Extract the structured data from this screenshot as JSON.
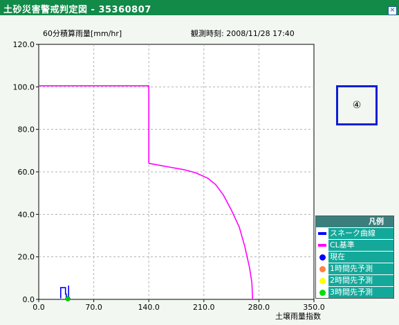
{
  "window": {
    "title": "土砂災害警戒判定図 - 35360807",
    "close_label": "×"
  },
  "chart_data": {
    "type": "line",
    "ylabel": "60分積算雨量[mm/hr]",
    "xlabel": "土壌雨量指数",
    "observation": "観測時刻: 2008/11/28 17:40",
    "xlim": [
      0,
      350
    ],
    "ylim": [
      0,
      120
    ],
    "x_ticks": [
      "0.0",
      "70.0",
      "140.0",
      "210.0",
      "280.0",
      "350.0"
    ],
    "y_ticks": [
      "0.0",
      "20.0",
      "40.0",
      "60.0",
      "80.0",
      "100.0",
      "120.0"
    ],
    "grid": true,
    "series": [
      {
        "name": "CL基準",
        "color": "#ff00ff",
        "points": [
          [
            0,
            100.5
          ],
          [
            140,
            100.5
          ],
          [
            140,
            64
          ],
          [
            155,
            63
          ],
          [
            170,
            62
          ],
          [
            185,
            61
          ],
          [
            200,
            59.5
          ],
          [
            215,
            57
          ],
          [
            225,
            54
          ],
          [
            235,
            49
          ],
          [
            245,
            42
          ],
          [
            255,
            34
          ],
          [
            262,
            25
          ],
          [
            268,
            15
          ],
          [
            271,
            8
          ],
          [
            272,
            0
          ]
        ]
      },
      {
        "name": "スネーク曲線",
        "color": "#0000ff",
        "points": [
          [
            28,
            0.5
          ],
          [
            28,
            5.5
          ],
          [
            34,
            5.5
          ],
          [
            34,
            2.5
          ],
          [
            35,
            2.5
          ],
          [
            35,
            0.5
          ],
          [
            38,
            0.5
          ],
          [
            38,
            6.5
          ]
        ]
      }
    ],
    "current_point": {
      "x": 37,
      "y": 0.3,
      "color": "#00d000"
    },
    "marker_label": "④"
  },
  "legend": {
    "title": "凡例",
    "items": [
      {
        "label": "スネーク曲線",
        "symbol": "line",
        "color": "#0000ff"
      },
      {
        "label": "CL基準",
        "symbol": "line",
        "color": "#ff00ff"
      },
      {
        "label": "現在",
        "symbol": "dot",
        "color": "#0000ff"
      },
      {
        "label": "1時間先予測",
        "symbol": "dot",
        "color": "#ff8040"
      },
      {
        "label": "2時間先予測",
        "symbol": "dot",
        "color": "#ffff00"
      },
      {
        "label": "3時間先予測",
        "symbol": "dot",
        "color": "#00e000"
      }
    ]
  }
}
